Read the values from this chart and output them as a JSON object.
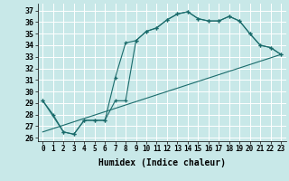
{
  "title": "",
  "xlabel": "Humidex (Indice chaleur)",
  "bg_color": "#c8e8e8",
  "grid_color": "#ffffff",
  "line_color": "#1a6b6b",
  "xlim": [
    -0.5,
    23.5
  ],
  "ylim": [
    25.7,
    37.6
  ],
  "xticks": [
    0,
    1,
    2,
    3,
    4,
    5,
    6,
    7,
    8,
    9,
    10,
    11,
    12,
    13,
    14,
    15,
    16,
    17,
    18,
    19,
    20,
    21,
    22,
    23
  ],
  "yticks": [
    26,
    27,
    28,
    29,
    30,
    31,
    32,
    33,
    34,
    35,
    36,
    37
  ],
  "series1_x": [
    0,
    1,
    2,
    3,
    4,
    5,
    6,
    7,
    8,
    9,
    10,
    11,
    12,
    13,
    14,
    15,
    16,
    17,
    18,
    19,
    20,
    21,
    22,
    23
  ],
  "series1_y": [
    29.2,
    28.0,
    26.5,
    26.3,
    27.5,
    27.5,
    27.5,
    31.2,
    34.2,
    34.4,
    35.2,
    35.5,
    36.2,
    36.7,
    36.9,
    36.3,
    36.1,
    36.1,
    36.5,
    36.1,
    35.0,
    34.0,
    33.8,
    33.2
  ],
  "series2_x": [
    0,
    2,
    3,
    4,
    5,
    6,
    7,
    8,
    9,
    10,
    11,
    12,
    13,
    14,
    15,
    16,
    17,
    18,
    19,
    20,
    21,
    22,
    23
  ],
  "series2_y": [
    29.2,
    26.5,
    26.3,
    27.5,
    27.5,
    27.5,
    29.2,
    29.2,
    34.4,
    35.2,
    35.5,
    36.2,
    36.7,
    36.9,
    36.3,
    36.1,
    36.1,
    36.5,
    36.1,
    35.0,
    34.0,
    33.8,
    33.2
  ],
  "series3_x": [
    0,
    23
  ],
  "series3_y": [
    26.5,
    33.2
  ],
  "xlabel_fontsize": 7,
  "tick_fontsize": 5.5
}
